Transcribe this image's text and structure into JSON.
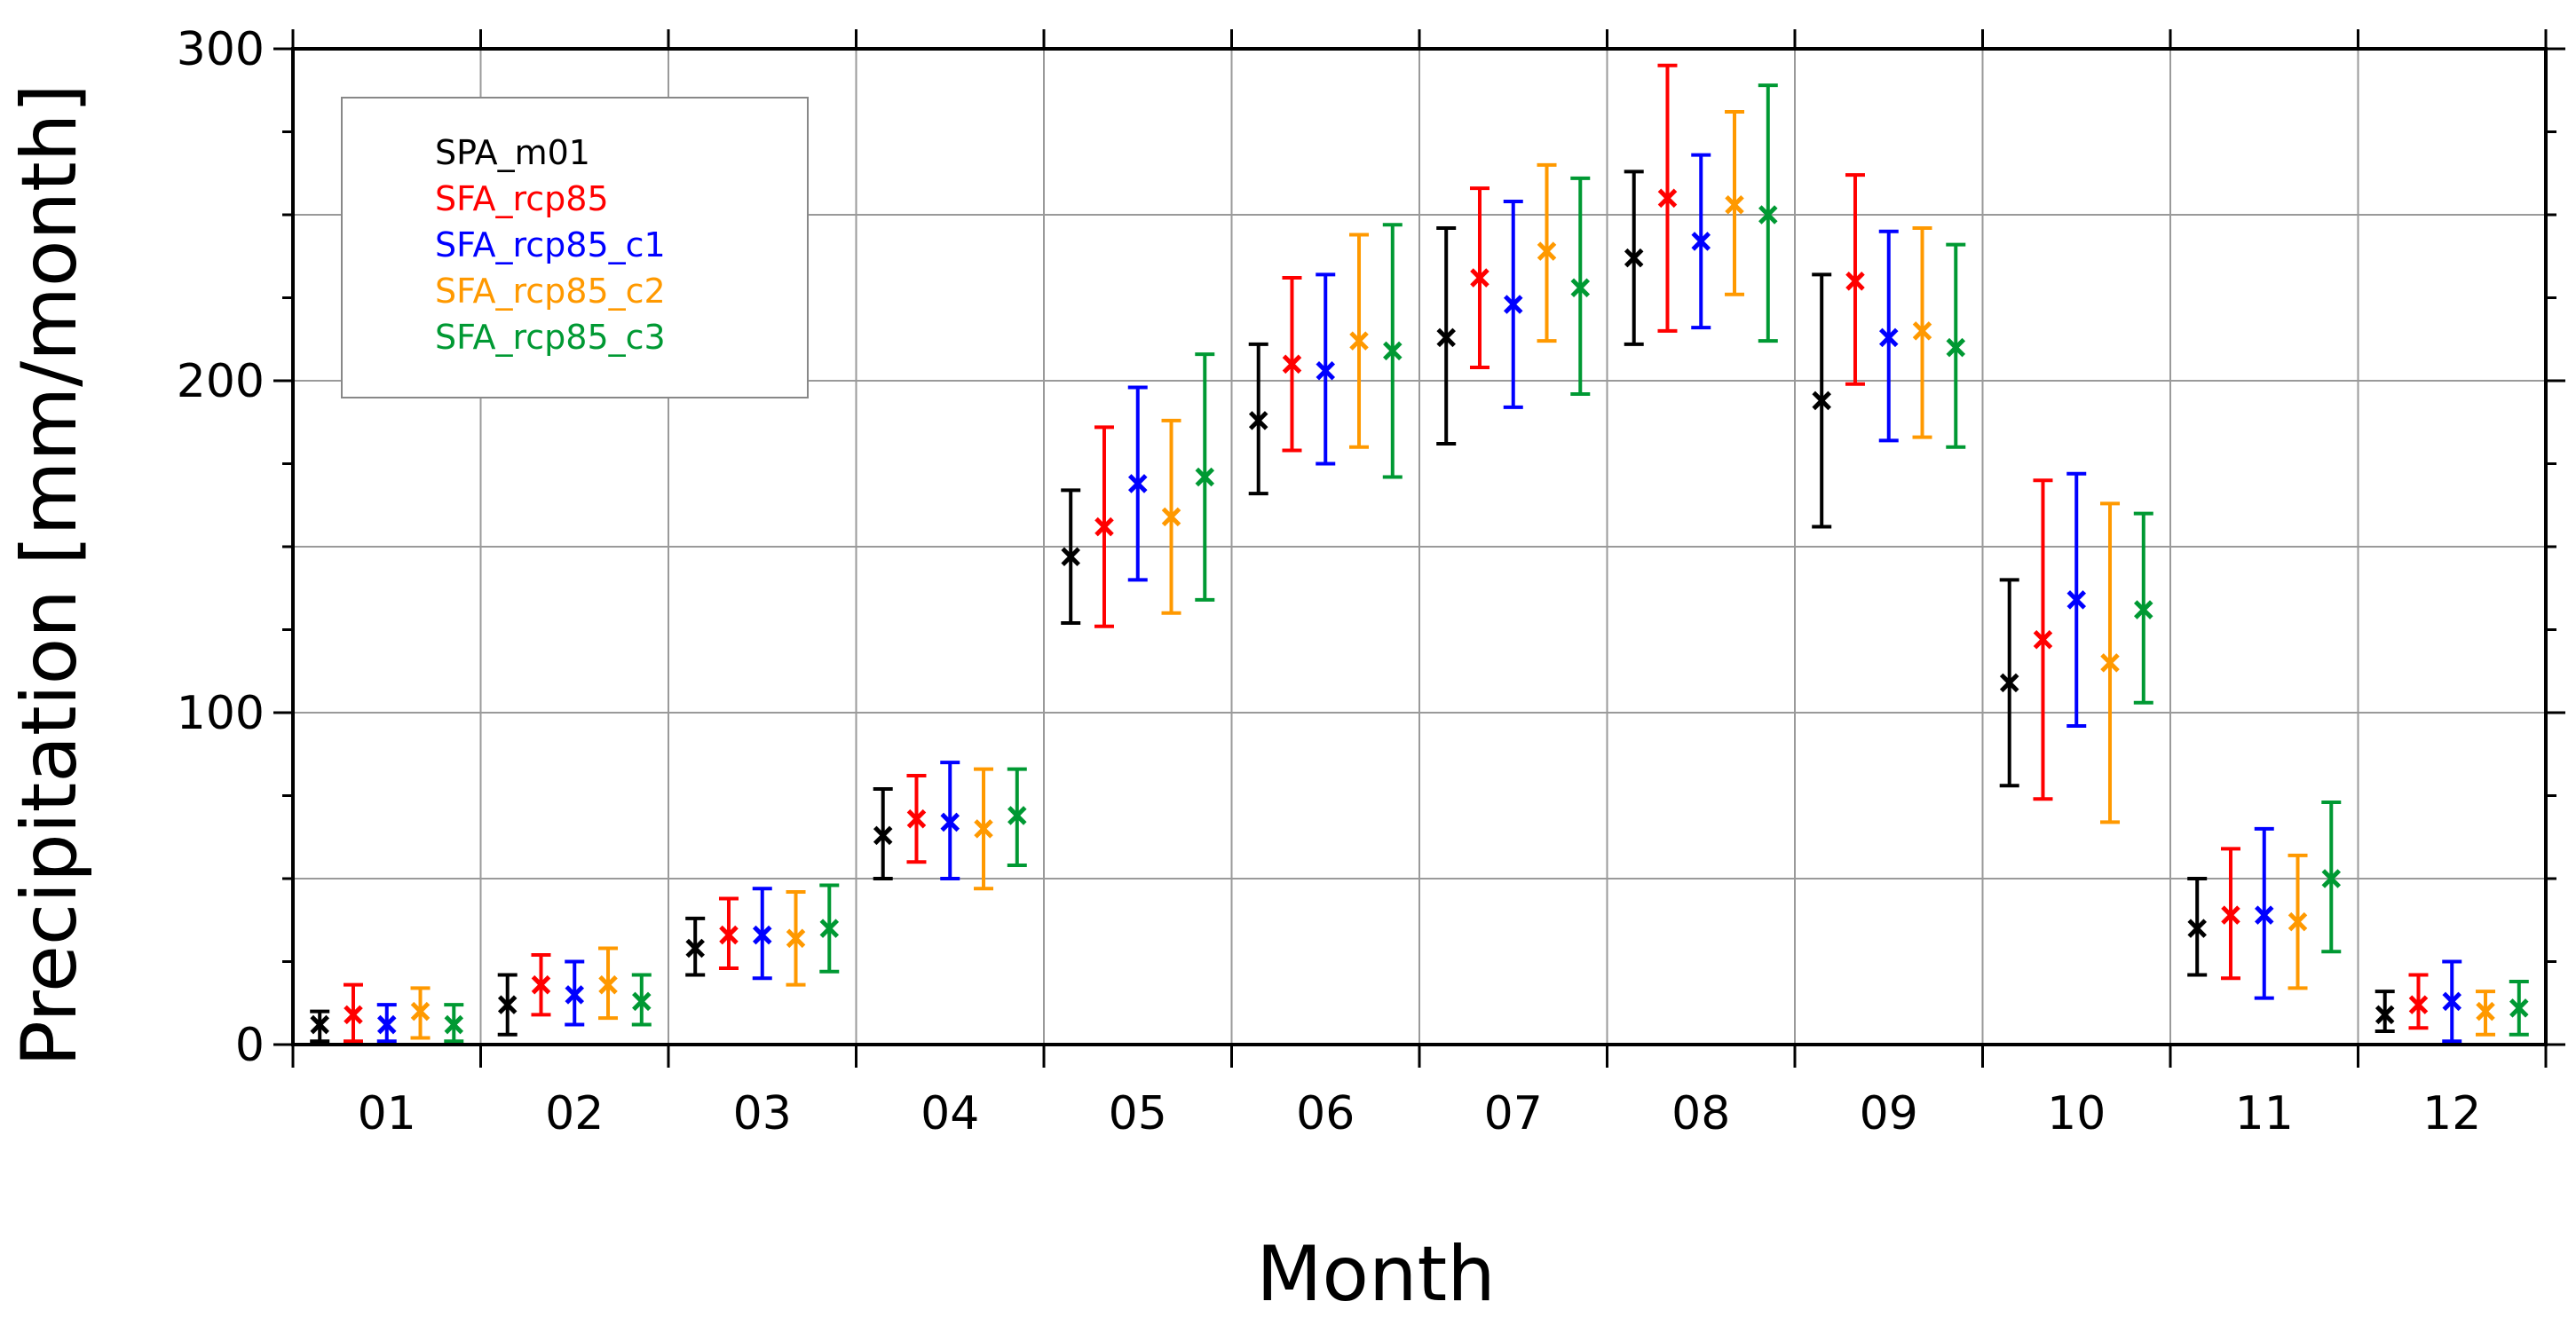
{
  "chart_data": {
    "type": "errorbar",
    "title": "",
    "xlabel": "Month",
    "ylabel": "Precipitation [mm/month]",
    "categories": [
      "01",
      "02",
      "03",
      "04",
      "05",
      "06",
      "07",
      "08",
      "09",
      "10",
      "11",
      "12"
    ],
    "ylim": [
      0,
      300
    ],
    "yticks": [
      0,
      100,
      200,
      300
    ],
    "ygrid_minor": [
      50,
      150,
      250
    ],
    "grid": true,
    "legend_position": "top-left",
    "series": [
      {
        "name": "SPA_m01",
        "color": "#000000",
        "values": [
          6,
          12,
          29,
          63,
          147,
          188,
          213,
          237,
          194,
          109,
          35,
          9
        ],
        "lower": [
          1,
          3,
          21,
          50,
          127,
          166,
          181,
          211,
          156,
          78,
          21,
          4
        ],
        "upper": [
          10,
          21,
          38,
          77,
          167,
          211,
          246,
          263,
          232,
          140,
          50,
          16
        ]
      },
      {
        "name": "SFA_rcp85",
        "color": "#ff0000",
        "values": [
          9,
          18,
          33,
          68,
          156,
          205,
          231,
          255,
          230,
          122,
          39,
          12
        ],
        "lower": [
          1,
          9,
          23,
          55,
          126,
          179,
          204,
          215,
          199,
          74,
          20,
          5
        ],
        "upper": [
          18,
          27,
          44,
          81,
          186,
          231,
          258,
          295,
          262,
          170,
          59,
          21
        ]
      },
      {
        "name": "SFA_rcp85_c1",
        "color": "#0000ff",
        "values": [
          6,
          15,
          33,
          67,
          169,
          203,
          223,
          242,
          213,
          134,
          39,
          13
        ],
        "lower": [
          1,
          6,
          20,
          50,
          140,
          175,
          192,
          216,
          182,
          96,
          14,
          1
        ],
        "upper": [
          12,
          25,
          47,
          85,
          198,
          232,
          254,
          268,
          245,
          172,
          65,
          25
        ]
      },
      {
        "name": "SFA_rcp85_c2",
        "color": "#ff9900",
        "values": [
          10,
          18,
          32,
          65,
          159,
          212,
          239,
          253,
          215,
          115,
          37,
          10
        ],
        "lower": [
          2,
          8,
          18,
          47,
          130,
          180,
          212,
          226,
          183,
          67,
          17,
          3
        ],
        "upper": [
          17,
          29,
          46,
          83,
          188,
          244,
          265,
          281,
          246,
          163,
          57,
          16
        ]
      },
      {
        "name": "SFA_rcp85_c3",
        "color": "#009933",
        "values": [
          6,
          13,
          35,
          69,
          171,
          209,
          228,
          250,
          210,
          131,
          50,
          11
        ],
        "lower": [
          1,
          6,
          22,
          54,
          134,
          171,
          196,
          212,
          180,
          103,
          28,
          3
        ],
        "upper": [
          12,
          21,
          48,
          83,
          208,
          247,
          261,
          289,
          241,
          160,
          73,
          19
        ]
      }
    ]
  }
}
